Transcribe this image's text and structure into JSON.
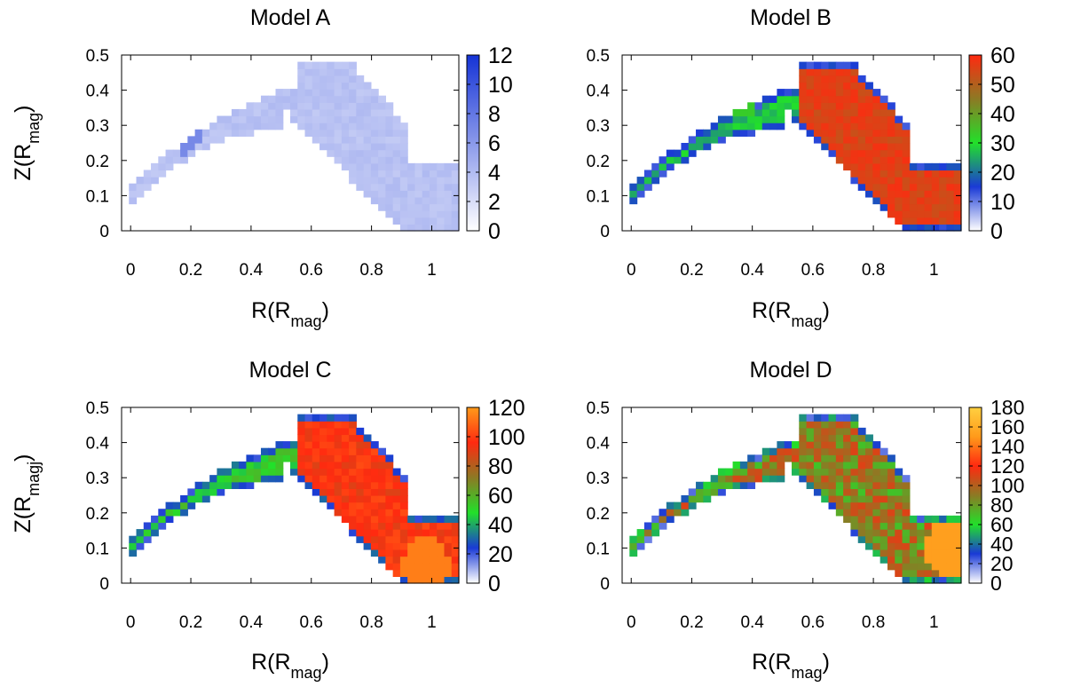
{
  "chart_data": [
    {
      "type": "heatmap",
      "title": "Model A",
      "xlabel_main": "R(R",
      "xlabel_sub": "mag",
      "xlabel_close": ")",
      "ylabel_main": "Z(R",
      "ylabel_sub": "mag",
      "ylabel_close": ")",
      "xlim": [
        -0.03,
        1.09
      ],
      "ylim": [
        0,
        0.5
      ],
      "xticks": [
        "0",
        "0.2",
        "0.4",
        "0.6",
        "0.8",
        "1"
      ],
      "xtick_values": [
        0,
        0.2,
        0.4,
        0.6,
        0.8,
        1
      ],
      "yticks": [
        "0",
        "0.1",
        "0.2",
        "0.3",
        "0.4",
        "0.5"
      ],
      "ytick_values": [
        0,
        0.1,
        0.2,
        0.3,
        0.4,
        0.5
      ],
      "colorbar_ticks": [
        "0",
        "2",
        "4",
        "6",
        "8",
        "10",
        "12"
      ],
      "colorbar_values": [
        0,
        2,
        4,
        6,
        8,
        10,
        12
      ],
      "colorbar_range": [
        0,
        12
      ],
      "colormap": [
        "#ffffff",
        "#1533d6"
      ],
      "field": {
        "arc_level": 0.3,
        "bulk_level": 0.3,
        "variation": 0.04,
        "hotspot": [
          0.17,
          0.3,
          0.58
        ],
        "edge_level": 0.3
      }
    },
    {
      "type": "heatmap",
      "title": "Model B",
      "xlabel_main": "R(R",
      "xlabel_sub": "mag",
      "xlabel_close": ")",
      "xlim": [
        -0.03,
        1.09
      ],
      "ylim": [
        0,
        0.5
      ],
      "xticks": [
        "0",
        "0.2",
        "0.4",
        "0.6",
        "0.8",
        "1"
      ],
      "xtick_values": [
        0,
        0.2,
        0.4,
        0.6,
        0.8,
        1
      ],
      "yticks": [
        "0",
        "0.1",
        "0.2",
        "0.3",
        "0.4",
        "0.5"
      ],
      "ytick_values": [
        0,
        0.1,
        0.2,
        0.3,
        0.4,
        0.5
      ],
      "colorbar_ticks": [
        "0",
        "10",
        "20",
        "30",
        "40",
        "50",
        "60"
      ],
      "colorbar_values": [
        0,
        10,
        20,
        30,
        40,
        50,
        60
      ],
      "colorbar_range": [
        0,
        60
      ],
      "colormap": [
        "#ffffff",
        "#1a3ad6",
        "#22e02a",
        "#8c7a24",
        "#ff2a10"
      ],
      "field": {
        "arc_level": 0.45,
        "bulk_level": 0.93,
        "variation": 0.05,
        "hotspot": [
          0.35,
          0.4,
          0.55
        ],
        "edge_level": 0.25
      }
    },
    {
      "type": "heatmap",
      "title": "Model C",
      "xlabel_main": "R(R",
      "xlabel_sub": "mag",
      "xlabel_close": ")",
      "ylabel_main": "Z(R",
      "ylabel_sub": "magj",
      "ylabel_close": ")",
      "xlim": [
        -0.03,
        1.09
      ],
      "ylim": [
        0,
        0.5
      ],
      "xticks": [
        "0",
        "0.2",
        "0.4",
        "0.6",
        "0.8",
        "1"
      ],
      "xtick_values": [
        0,
        0.2,
        0.4,
        0.6,
        0.8,
        1
      ],
      "yticks": [
        "0",
        "0.1",
        "0.2",
        "0.3",
        "0.4",
        "0.5"
      ],
      "ytick_values": [
        0,
        0.1,
        0.2,
        0.3,
        0.4,
        0.5
      ],
      "colorbar_ticks": [
        "0",
        "20",
        "40",
        "60",
        "80",
        "100",
        "120"
      ],
      "colorbar_values": [
        0,
        20,
        40,
        60,
        80,
        100,
        120
      ],
      "colorbar_range": [
        0,
        120
      ],
      "colormap": [
        "#ffffff",
        "#1a3ad6",
        "#22e02a",
        "#8c7a24",
        "#ff2a10",
        "#ff9a1a"
      ],
      "field": {
        "arc_level": 0.42,
        "bulk_level": 0.8,
        "variation": 0.06,
        "hotspot": [
          0.98,
          0.05,
          0.95
        ],
        "edge_level": 0.22
      }
    },
    {
      "type": "heatmap",
      "title": "Model D",
      "xlabel_main": "R(R",
      "xlabel_sub": "mag",
      "xlabel_close": ")",
      "xlim": [
        -0.03,
        1.09
      ],
      "ylim": [
        0,
        0.5
      ],
      "xticks": [
        "0",
        "0.2",
        "0.4",
        "0.6",
        "0.8",
        "1"
      ],
      "xtick_values": [
        0,
        0.2,
        0.4,
        0.6,
        0.8,
        1
      ],
      "yticks": [
        "0",
        "0.1",
        "0.2",
        "0.3",
        "0.4",
        "0.5"
      ],
      "ytick_values": [
        0,
        0.1,
        0.2,
        0.3,
        0.4,
        0.5
      ],
      "colorbar_ticks": [
        "0",
        "20",
        "40",
        "60",
        "80",
        "100",
        "120",
        "140",
        "160",
        "180"
      ],
      "colorbar_values": [
        0,
        20,
        40,
        60,
        80,
        100,
        120,
        140,
        160,
        180
      ],
      "colorbar_range": [
        0,
        180
      ],
      "colormap": [
        "#ffffff",
        "#1a3ad6",
        "#22e02a",
        "#8c7a24",
        "#ff2a10",
        "#ff9a1a",
        "#ffd040"
      ],
      "field": {
        "arc_level": 0.5,
        "bulk_level": 0.5,
        "variation": 0.12,
        "hotspot": [
          1.05,
          0.1,
          0.85
        ],
        "edge_level": 0.22
      }
    }
  ]
}
